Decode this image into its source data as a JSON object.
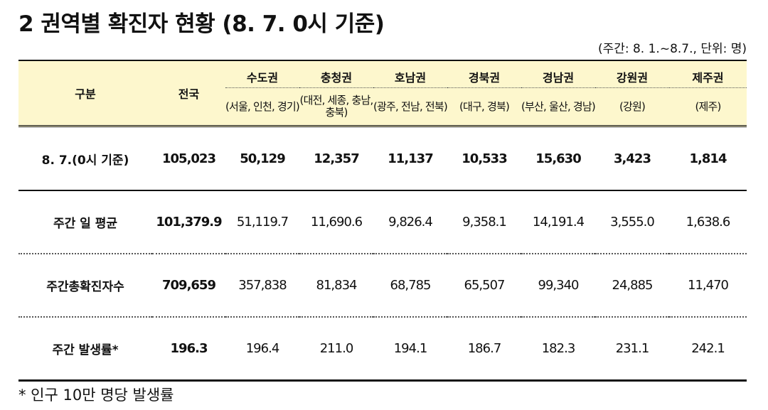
{
  "title": "2  권역별 확진자 현황 (8. 7. 0시 기준)",
  "unit_note": "(주간: 8. 1.~8.7., 단위: 명)",
  "columns": {
    "category": "구분",
    "national": "전국",
    "regions": [
      {
        "name": "수도권",
        "sub": "(서울, 인천, 경기)"
      },
      {
        "name": "충청권",
        "sub": "(대전, 세종, 충남, 충북)"
      },
      {
        "name": "호남권",
        "sub": "(광주, 전남, 전북)"
      },
      {
        "name": "경북권",
        "sub": "(대구, 경북)"
      },
      {
        "name": "경남권",
        "sub": "(부산, 울산, 경남)"
      },
      {
        "name": "강원권",
        "sub": "(강원)"
      },
      {
        "name": "제주권",
        "sub": "(제주)"
      }
    ]
  },
  "rows": [
    {
      "label": "8. 7.(0시 기준)",
      "total": "105,023",
      "values": [
        "50,129",
        "12,357",
        "11,137",
        "10,533",
        "15,630",
        "3,423",
        "1,814"
      ]
    },
    {
      "label": "주간 일 평균",
      "total": "101,379.9",
      "values": [
        "51,119.7",
        "11,690.6",
        "9,826.4",
        "9,358.1",
        "14,191.4",
        "3,555.0",
        "1,638.6"
      ]
    },
    {
      "label": "주간총확진자수",
      "total": "709,659",
      "values": [
        "357,838",
        "81,834",
        "68,785",
        "65,507",
        "99,340",
        "24,885",
        "11,470"
      ]
    },
    {
      "label": "주간 발생률*",
      "total": "196.3",
      "values": [
        "196.4",
        "211.0",
        "194.1",
        "186.7",
        "182.3",
        "231.1",
        "242.1"
      ]
    }
  ],
  "footnote": "* 인구 10만 명당 발생률",
  "colors": {
    "header_bg": "#fdf7cd"
  }
}
